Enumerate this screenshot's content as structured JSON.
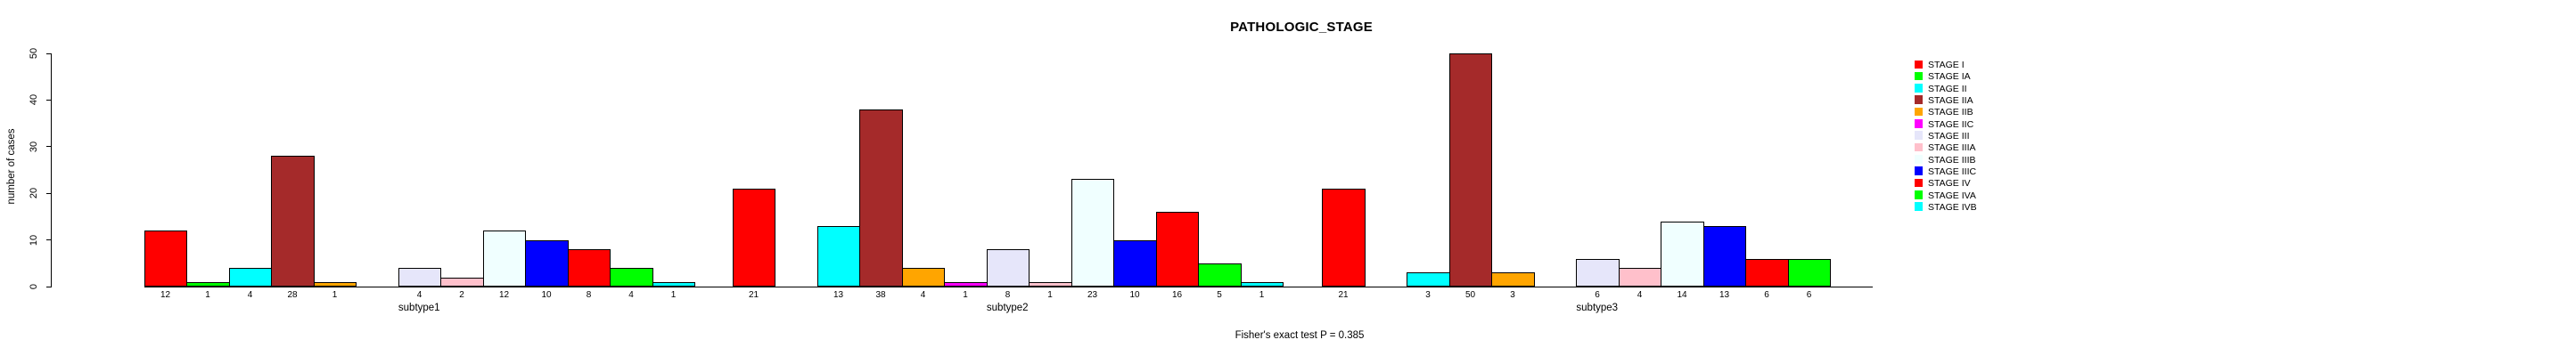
{
  "title": "PATHOLOGIC_STAGE",
  "chart_data": {
    "type": "bar",
    "title": "PATHOLOGIC_STAGE",
    "xlabel": "",
    "ylabel": "number of cases",
    "ylim": [
      0,
      50
    ],
    "yticks": [
      0,
      10,
      20,
      30,
      40,
      50
    ],
    "grid": false,
    "legend_position": "right-outside",
    "annotation": "Fisher's exact test P = 0.385",
    "stages": [
      {
        "label": "STAGE I",
        "color": "#FF0000"
      },
      {
        "label": "STAGE IA",
        "color": "#00FF00"
      },
      {
        "label": "STAGE II",
        "color": "#00FFFF"
      },
      {
        "label": "STAGE IIA",
        "color": "#A52A2A"
      },
      {
        "label": "STAGE IIB",
        "color": "#FFA500"
      },
      {
        "label": "STAGE IIC",
        "color": "#FF00FF"
      },
      {
        "label": "STAGE III",
        "color": "#E6E6FA"
      },
      {
        "label": "STAGE IIIA",
        "color": "#FFC0CB"
      },
      {
        "label": "STAGE IIIB",
        "color": "#F0FFFF"
      },
      {
        "label": "STAGE IIIC",
        "color": "#0000FF"
      },
      {
        "label": "STAGE IV",
        "color": "#FF0000"
      },
      {
        "label": "STAGE IVA",
        "color": "#00FF00"
      },
      {
        "label": "STAGE IVB",
        "color": "#00FFFF"
      }
    ],
    "categories": [
      "subtype1",
      "subtype2",
      "subtype3"
    ],
    "series_note": "values are per-group counts for each stage in stages[] order; 0 = no bar drawn and no label shown",
    "groups": [
      {
        "label": "subtype1",
        "values": [
          12,
          1,
          4,
          28,
          1,
          0,
          4,
          2,
          12,
          10,
          8,
          4,
          1
        ]
      },
      {
        "label": "subtype2",
        "values": [
          21,
          0,
          13,
          38,
          4,
          1,
          8,
          1,
          23,
          10,
          16,
          5,
          1
        ]
      },
      {
        "label": "subtype3",
        "values": [
          21,
          0,
          3,
          50,
          3,
          0,
          6,
          4,
          14,
          13,
          6,
          6,
          0
        ]
      }
    ]
  }
}
